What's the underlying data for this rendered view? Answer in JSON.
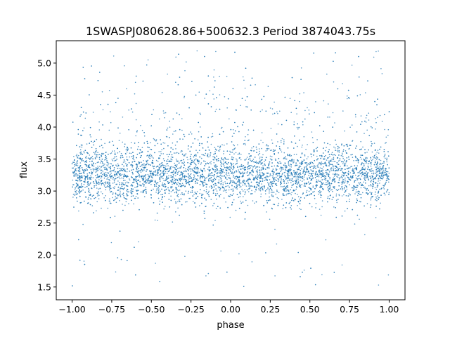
{
  "chart_data": {
    "type": "scatter",
    "title": "1SWASPJ080628.86+500632.3 Period 3874043.75s",
    "xlabel": "phase",
    "ylabel": "flux",
    "xlim": [
      -1.1,
      1.1
    ],
    "ylim": [
      1.3,
      5.35
    ],
    "x_ticks": [
      -1.0,
      -0.75,
      -0.5,
      -0.25,
      0.0,
      0.25,
      0.5,
      0.75,
      1.0
    ],
    "x_tick_labels": [
      "−1.00",
      "−0.75",
      "−0.50",
      "−0.25",
      "0.00",
      "0.25",
      "0.50",
      "0.75",
      "1.00"
    ],
    "y_ticks": [
      1.5,
      2.0,
      2.5,
      3.0,
      3.5,
      4.0,
      4.5,
      5.0
    ],
    "y_tick_labels": [
      "1.5",
      "2.0",
      "2.5",
      "3.0",
      "3.5",
      "4.0",
      "4.5",
      "5.0"
    ],
    "grid": false,
    "series": [
      {
        "color": "#1f77b4",
        "phase_range": [
          -1.0,
          1.0
        ],
        "flux_core": [
          2.7,
          3.8
        ],
        "flux_median": 3.25,
        "flux_spread": [
          1.5,
          5.2
        ],
        "point_count": 6000
      }
    ]
  }
}
